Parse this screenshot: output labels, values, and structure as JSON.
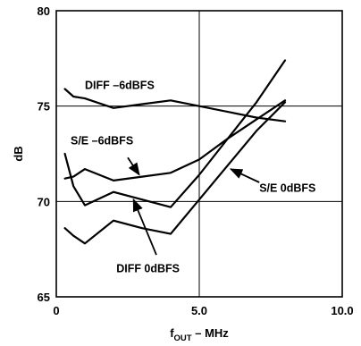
{
  "colors": {
    "background": "#ffffff",
    "line": "#000000",
    "grid": "#000000"
  },
  "chart_data": {
    "type": "line",
    "title": "",
    "xlabel": {
      "prefix": "f",
      "subscript": "OUT",
      "suffix": " – MHz"
    },
    "ylabel": "dB",
    "xlim": [
      0,
      10
    ],
    "ylim": [
      65,
      80
    ],
    "x_ticks": [
      0,
      5,
      10
    ],
    "x_tick_labels": [
      "0",
      "5.0",
      "10.0"
    ],
    "y_ticks": [
      65,
      70,
      75,
      80
    ],
    "y_tick_labels": [
      "65",
      "70",
      "75",
      "80"
    ],
    "grid": true,
    "legend": "none",
    "series": [
      {
        "name": "DIFF –6dBFS",
        "x": [
          0.3,
          0.6,
          1,
          2,
          3,
          4,
          5,
          6,
          7,
          8
        ],
        "y": [
          75.9,
          75.5,
          75.4,
          74.9,
          75.1,
          75.3,
          75.0,
          74.7,
          74.4,
          74.2
        ]
      },
      {
        "name": "S/E –6dBFS",
        "x": [
          0.3,
          0.6,
          1,
          2,
          3,
          4,
          5,
          6,
          7,
          8
        ],
        "y": [
          71.2,
          71.3,
          71.7,
          71.1,
          71.3,
          71.5,
          72.2,
          73.3,
          74.3,
          75.3
        ]
      },
      {
        "name": "S/E 0dBFS",
        "x": [
          0.3,
          0.6,
          1,
          2,
          3,
          4,
          5,
          6,
          7,
          8
        ],
        "y": [
          72.5,
          70.8,
          69.8,
          70.5,
          70.1,
          69.7,
          71.4,
          73.3,
          75.2,
          77.4
        ]
      },
      {
        "name": "DIFF 0dBFS",
        "x": [
          0.3,
          0.6,
          1,
          2,
          3,
          4,
          5,
          6,
          7,
          8
        ],
        "y": [
          68.6,
          68.2,
          67.8,
          69.0,
          68.6,
          68.3,
          70.1,
          71.9,
          73.7,
          75.2
        ]
      }
    ],
    "annotations": [
      {
        "text": "DIFF –6dBFS",
        "text_at": [
          1.0,
          75.9
        ],
        "arrow": false
      },
      {
        "text": "S/E –6dBFS",
        "text_at": [
          0.5,
          73.0
        ],
        "arrow": true,
        "arrow_from": [
          2.5,
          72.3
        ],
        "arrow_to": [
          2.9,
          71.4
        ]
      },
      {
        "text": "S/E 0dBFS",
        "text_at": [
          7.1,
          70.5
        ],
        "arrow": true,
        "arrow_from": [
          7.1,
          71.0
        ],
        "arrow_to": [
          6.1,
          71.7
        ]
      },
      {
        "text": "DIFF 0dBFS",
        "text_at": [
          2.1,
          66.3
        ],
        "arrow": true,
        "arrow_from": [
          3.5,
          67.2
        ],
        "arrow_to": [
          2.7,
          70.1
        ]
      }
    ]
  }
}
